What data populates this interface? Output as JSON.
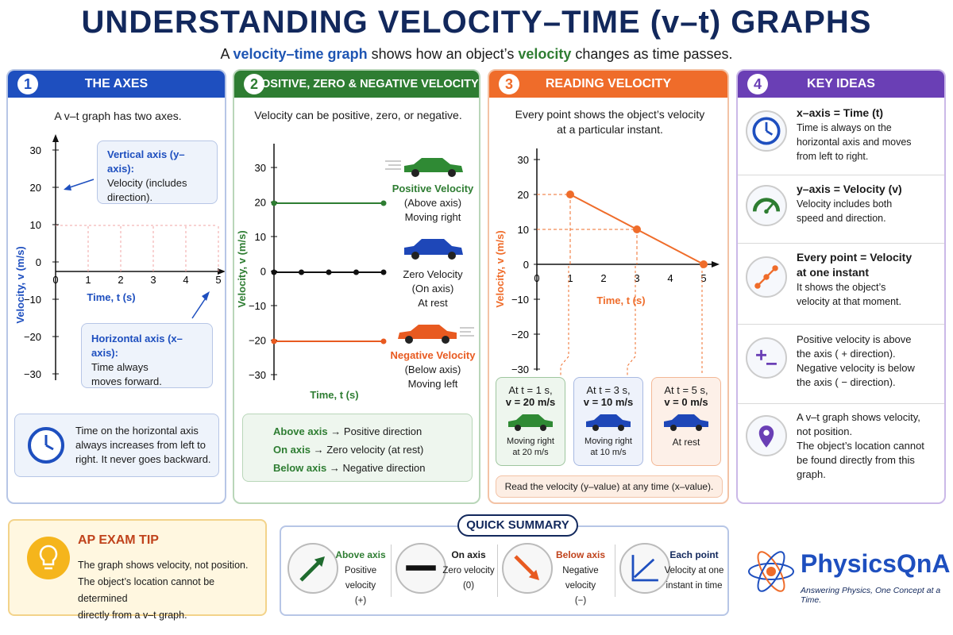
{
  "title": "UNDERSTANDING VELOCITY–TIME (v–t) GRAPHS",
  "subtitle": {
    "p1": "A ",
    "h1": "velocity–time graph",
    "p2": " shows how an object’s ",
    "h2": "velocity",
    "p3": " changes as time passes."
  },
  "panel1": {
    "num": "1",
    "title": "THE AXES",
    "intro": "A v–t graph has two axes.",
    "ylabel": "Velocity, v (m/s)",
    "xlabel": "Time, t (s)",
    "yticks": [
      "30",
      "20",
      "10",
      "0",
      "−10",
      "−20",
      "−30"
    ],
    "xticks": [
      "0",
      "1",
      "2",
      "3",
      "4",
      "5"
    ],
    "vbox_title": "Vertical axis (y–axis):",
    "vbox_l1": "Velocity (includes",
    "vbox_l2": "direction).",
    "hbox_title": "Horizontal axis (x–axis):",
    "hbox_l1": "Time always",
    "hbox_l2": "moves forward.",
    "note_l1": "Time on the horizontal axis",
    "note_l2": "always increases from left to",
    "note_l3": "right. It never goes backward."
  },
  "panel2": {
    "num": "2",
    "title": "POSITIVE, ZERO & NEGATIVE VELOCITY",
    "intro": "Velocity can be positive, zero, or negative.",
    "ylabel": "Velocity, v (m/s)",
    "xlabel": "Time, t (s)",
    "yticks": [
      "30",
      "20",
      "10",
      "0",
      "−10",
      "−20",
      "−30"
    ],
    "pos_title": "Positive Velocity",
    "pos_l1": "(Above axis)",
    "pos_l2": "Moving right",
    "zero_title": "Zero Velocity",
    "zero_l1": "(On axis)",
    "zero_l2": "At rest",
    "neg_title": "Negative Velocity",
    "neg_l1": "(Below axis)",
    "neg_l2": "Moving left",
    "legend": [
      {
        "k": "Above axis",
        "v": "Positive direction"
      },
      {
        "k": "On axis",
        "v": "Zero velocity (at rest)"
      },
      {
        "k": "Below axis",
        "v": "Negative direction"
      }
    ],
    "arrow": "→"
  },
  "panel3": {
    "num": "3",
    "title": "READING VELOCITY",
    "intro_l1": "Every point shows the object’s velocity",
    "intro_l2": "at a particular instant.",
    "ylabel": "Velocity, v (m/s)",
    "xlabel": "Time, t (s)",
    "yticks": [
      "30",
      "20",
      "10",
      "0",
      "−10",
      "−20",
      "−30"
    ],
    "xticks": [
      "0",
      "1",
      "2",
      "3",
      "4",
      "5"
    ],
    "boxes": [
      {
        "l1": "At t = 1 s,",
        "l2": "v = 20 m/s",
        "c1": "Moving right",
        "c2": "at 20 m/s"
      },
      {
        "l1": "At t = 3 s,",
        "l2": "v = 10 m/s",
        "c1": "Moving right",
        "c2": "at 10 m/s"
      },
      {
        "l1": "At t = 5 s,",
        "l2": "v = 0 m/s",
        "c1": "At rest",
        "c2": ""
      }
    ],
    "footer": "Read the velocity (y–value) at any time (x–value)."
  },
  "panel4": {
    "num": "4",
    "title": "KEY IDEAS",
    "items": [
      {
        "title": "x–axis = Time (t)",
        "l1": "Time is always on the",
        "l2": "horizontal axis and moves",
        "l3": "from left to right.",
        "l4": "",
        "icon": "clock-icon"
      },
      {
        "title": "y–axis = Velocity (v)",
        "l1": "Velocity includes both",
        "l2": "speed and direction.",
        "l3": "",
        "l4": "",
        "icon": "speedometer-icon"
      },
      {
        "title": "Every point = Velocity",
        "title2": "at one instant",
        "l1": "It shows the object’s",
        "l2": "velocity at that moment.",
        "l3": "",
        "l4": "",
        "icon": "points-line-icon"
      },
      {
        "title": "",
        "l1": "Positive velocity is above",
        "l2": "the axis ( + direction).",
        "l3": "Negative velocity is below",
        "l4": "the axis ( − direction).",
        "icon": "plus-minus-icon"
      },
      {
        "title": "",
        "l1": "A v–t graph shows velocity,",
        "l2": "not position.",
        "l3": "The object’s location cannot",
        "l4": "be found directly from this",
        "l5": "graph.",
        "icon": "location-pin-icon"
      }
    ]
  },
  "tip": {
    "title": "AP EXAM TIP",
    "l1": "The graph shows velocity, not position.",
    "l2": "The object’s location cannot be determined",
    "l3": "directly from a v–t graph."
  },
  "summary": {
    "title": "QUICK SUMMARY",
    "items": [
      {
        "t": "Above axis",
        "l1": "Positive velocity",
        "l2": "(+)"
      },
      {
        "t": "On axis",
        "l1": "Zero velocity",
        "l2": "(0)"
      },
      {
        "t": "Below axis",
        "l1": "Negative velocity",
        "l2": "(−)"
      },
      {
        "t": "Each point",
        "l1": "Velocity at one",
        "l2": "instant in time"
      }
    ]
  },
  "brand": {
    "name": "PhysicsQnA",
    "tagline": "Answering Physics, One Concept at a Time."
  },
  "colors": {
    "blue": "#1e4fbf",
    "green": "#2e7d32",
    "orange": "#ef6c2a",
    "purple": "#6a3fb5",
    "navy": "#12285c"
  },
  "chart_data": [
    {
      "type": "line",
      "title": "Reading Velocity",
      "xlabel": "Time, t (s)",
      "ylabel": "Velocity, v (m/s)",
      "x": [
        1,
        3,
        5
      ],
      "y": [
        20,
        10,
        0
      ],
      "xlim": [
        0,
        5
      ],
      "ylim": [
        -30,
        30
      ]
    },
    {
      "type": "line",
      "title": "Positive, Zero & Negative Velocity",
      "xlabel": "Time, t (s)",
      "ylabel": "Velocity, v (m/s)",
      "ylim": [
        -30,
        30
      ],
      "series": [
        {
          "name": "Positive Velocity",
          "values": [
            20,
            20
          ]
        },
        {
          "name": "Zero Velocity",
          "values": [
            0,
            0,
            0,
            0,
            0
          ]
        },
        {
          "name": "Negative Velocity",
          "values": [
            -20,
            -20
          ]
        }
      ]
    }
  ]
}
